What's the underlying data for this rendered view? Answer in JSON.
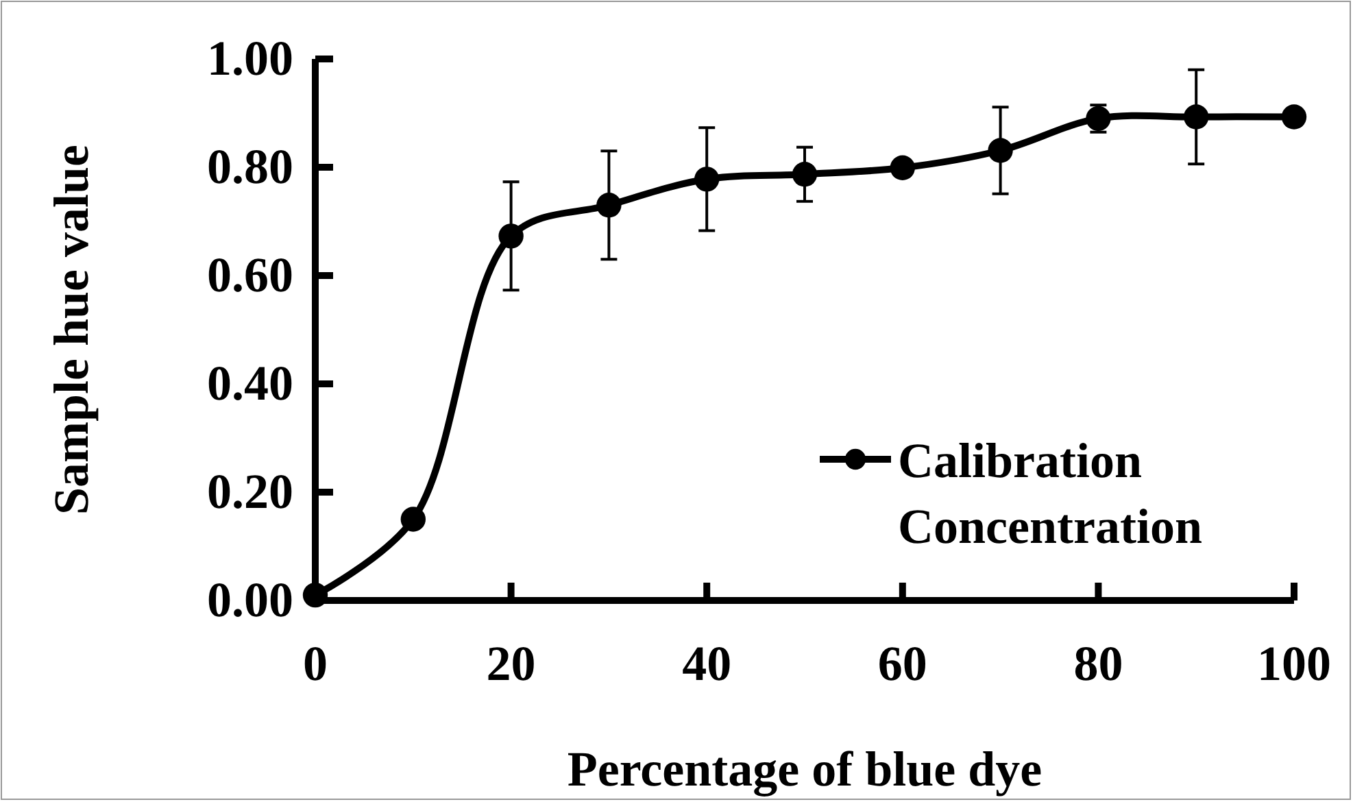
{
  "chart_data": {
    "type": "line",
    "xlabel": "Percentage of blue dye",
    "ylabel": "Sample hue value",
    "x": [
      0,
      10,
      20,
      30,
      40,
      50,
      60,
      70,
      80,
      90,
      100
    ],
    "series": [
      {
        "name": "Calibration Concentration",
        "color": "#000000",
        "values": [
          0.01,
          0.15,
          0.673,
          0.73,
          0.778,
          0.787,
          0.799,
          0.831,
          0.89,
          0.893,
          0.893
        ],
        "errors": [
          null,
          null,
          0.1,
          0.1,
          0.095,
          0.05,
          0.015,
          0.08,
          0.025,
          0.087,
          0.015
        ]
      }
    ],
    "xlim": [
      0,
      100
    ],
    "xticks": [
      0,
      20,
      40,
      60,
      80,
      100
    ],
    "ylim": [
      0,
      1
    ],
    "yticks": [
      {
        "value": 0,
        "label": "0.00"
      },
      {
        "value": 0.2,
        "label": "0.20"
      },
      {
        "value": 0.4,
        "label": "0.40"
      },
      {
        "value": 0.6,
        "label": "0.60"
      },
      {
        "value": 0.8,
        "label": "0.80"
      },
      {
        "value": 1,
        "label": "1.00"
      }
    ],
    "grid": false,
    "legend": "bottom right",
    "marker": "circle",
    "line_style": "solid"
  }
}
